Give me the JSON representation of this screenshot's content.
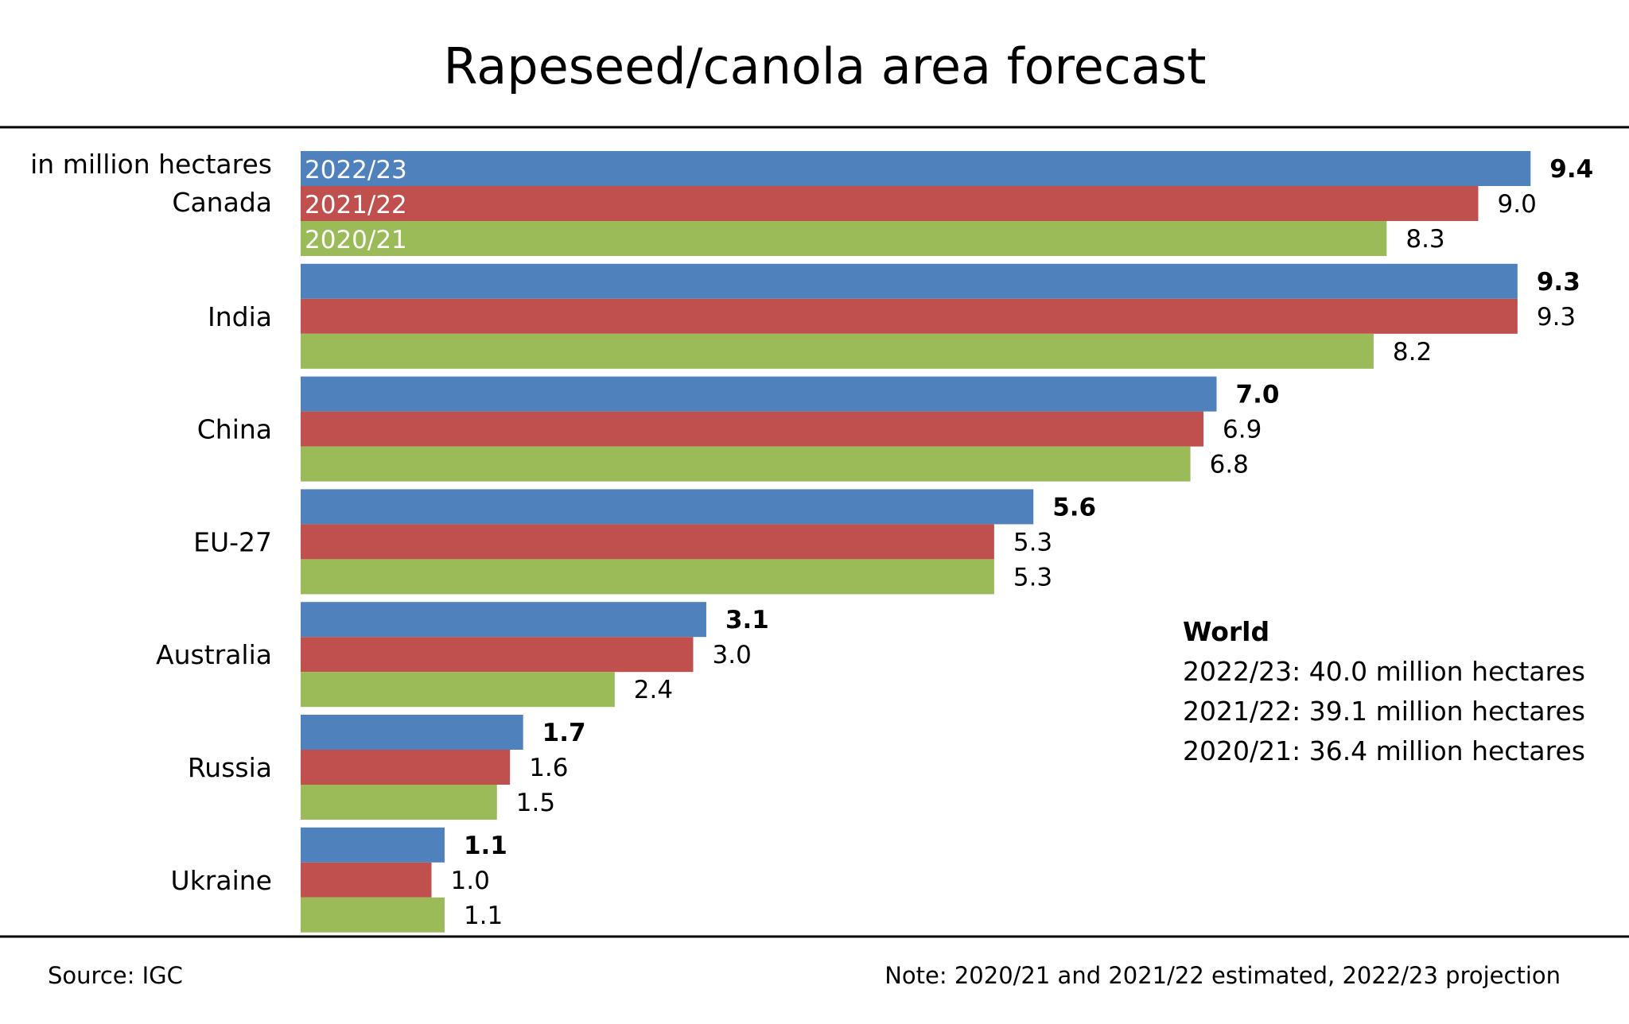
{
  "chart_data": {
    "type": "bar",
    "orientation": "horizontal",
    "title": "Rapeseed/canola area forecast",
    "unit_label": "in million hectares",
    "categories": [
      "Canada",
      "India",
      "China",
      "EU-27",
      "Australia",
      "Russia",
      "Ukraine"
    ],
    "series": [
      {
        "name": "2022/23",
        "color": "#4F81BD",
        "bold_labels": true,
        "values": [
          9.4,
          9.3,
          7.0,
          5.6,
          3.1,
          1.7,
          1.1
        ]
      },
      {
        "name": "2021/22",
        "color": "#C0504D",
        "bold_labels": false,
        "values": [
          9.0,
          9.3,
          6.9,
          5.3,
          3.0,
          1.6,
          1.0
        ]
      },
      {
        "name": "2020/21",
        "color": "#9BBB59",
        "bold_labels": false,
        "values": [
          8.3,
          8.2,
          6.8,
          5.3,
          2.4,
          1.5,
          1.1
        ]
      }
    ],
    "value_labels": [
      [
        "9.4",
        "9.3",
        "7.0",
        "5.6",
        "3.1",
        "1.7",
        "1.1"
      ],
      [
        "9.0",
        "9.3",
        "6.9",
        "5.3",
        "3.0",
        "1.6",
        "1.0"
      ],
      [
        "8.3",
        "8.2",
        "6.8",
        "5.3",
        "2.4",
        "1.5",
        "1.1"
      ]
    ],
    "xlim": [
      0,
      10
    ],
    "grid": false,
    "legend": "inside-first-bars",
    "xlabel": "",
    "ylabel": ""
  },
  "world": {
    "title": "World",
    "lines": [
      "2022/23: 40.0 million hectares",
      "2021/22: 39.1 million hectares",
      "2020/21: 36.4 million hectares"
    ]
  },
  "footer": {
    "source": "Source:  IGC",
    "note": "Note: 2020/21 and 2021/22 estimated, 2022/23 projection"
  }
}
